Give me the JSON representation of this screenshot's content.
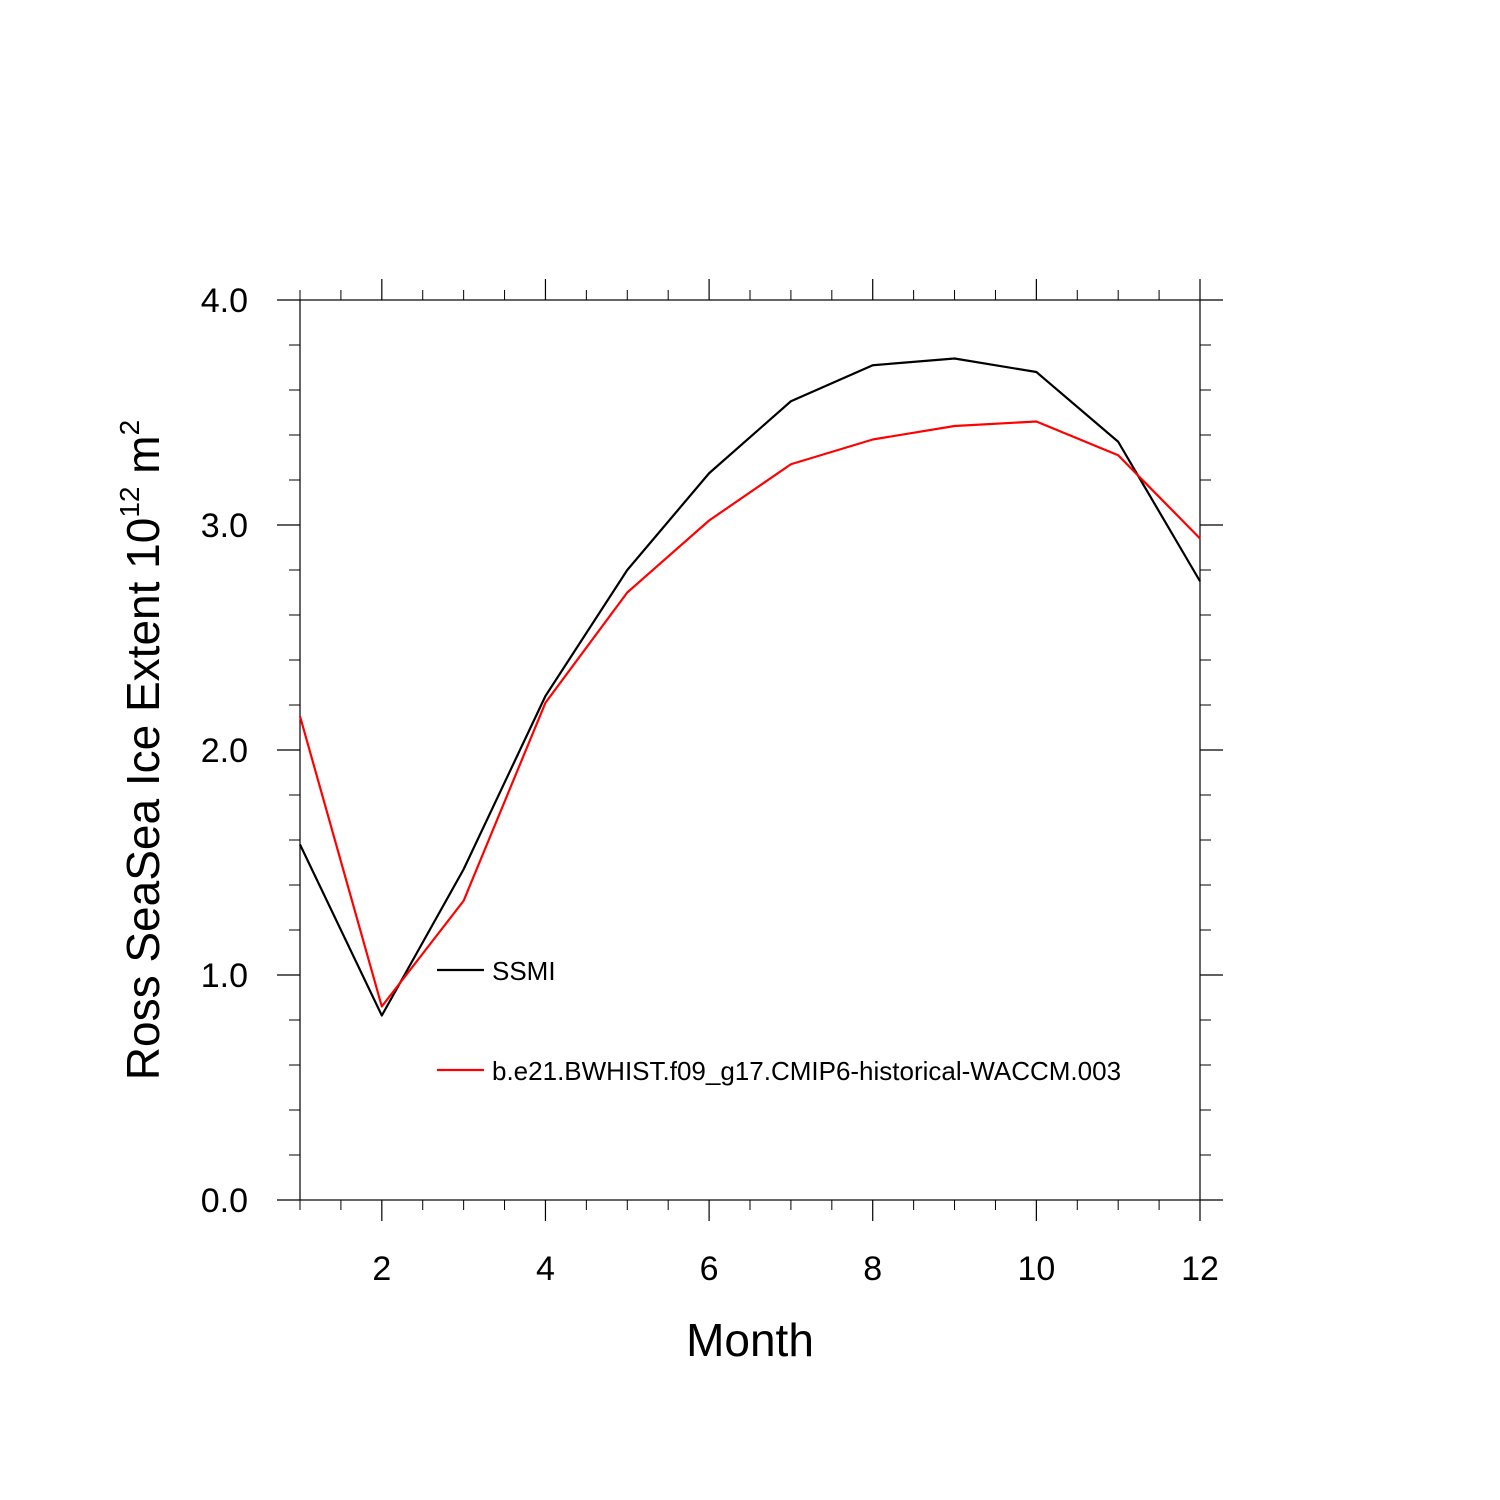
{
  "chart_data": {
    "type": "line",
    "xlabel": "Month",
    "ylabel": "Ross SeaSea Ice Extent 10",
    "ylabel_sup1": "12",
    "ylabel_unit": " m",
    "ylabel_sup2": "2",
    "xlim": [
      1,
      12
    ],
    "ylim": [
      0,
      4
    ],
    "x_ticks": [
      2,
      4,
      6,
      8,
      10,
      12
    ],
    "x_tick_labels": [
      "2",
      "4",
      "6",
      "8",
      "10",
      "12"
    ],
    "y_ticks": [
      0,
      1,
      2,
      3,
      4
    ],
    "y_tick_labels": [
      "0.0",
      "1.0",
      "2.0",
      "3.0",
      "4.0"
    ],
    "grid": false,
    "legend_position": "inside-lower-center",
    "x": [
      1,
      2,
      3,
      4,
      5,
      6,
      7,
      8,
      9,
      10,
      11,
      12
    ],
    "series": [
      {
        "name": "SSMI",
        "color": "#000000",
        "values": [
          1.58,
          0.82,
          1.47,
          2.24,
          2.8,
          3.23,
          3.55,
          3.71,
          3.74,
          3.68,
          3.37,
          2.75
        ]
      },
      {
        "name": "b.e21.BWHIST.f09_g17.CMIP6-historical-WACCM.003",
        "color": "#ff0000",
        "values": [
          2.15,
          0.86,
          1.33,
          2.21,
          2.7,
          3.02,
          3.27,
          3.38,
          3.44,
          3.46,
          3.31,
          2.94
        ]
      }
    ]
  }
}
